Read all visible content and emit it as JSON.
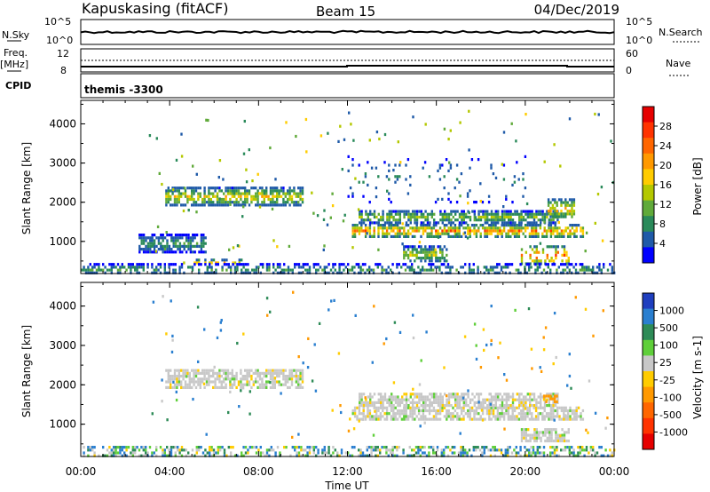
{
  "header": {
    "station": "Kapuskasing (fitACF)",
    "beam": "Beam 15",
    "date": "04/Dec/2019"
  },
  "top_panels": {
    "nsky_label": "N.Sky",
    "nsearch_label": "N.Search",
    "freq_label": "Freq.",
    "freq_unit": "[MHz]",
    "nave_label": "Nave",
    "cpid_label": "CPID",
    "cpid_value": "themis -3300",
    "nsky_ticks": [
      "10^5",
      "10^0"
    ],
    "nsearch_ticks": [
      "10^5",
      "10^0"
    ],
    "freq_ticks": [
      "12",
      "8"
    ],
    "nave_ticks": [
      "60",
      "0"
    ]
  },
  "chart_data": [
    {
      "type": "heatmap",
      "panel": "power",
      "ylabel": "Slant Range [km]",
      "xlabel": "Time UT",
      "x_ticks": [
        "00:00",
        "04:00",
        "08:00",
        "12:00",
        "16:00",
        "20:00",
        "00:00"
      ],
      "x_range_hours": [
        0,
        24
      ],
      "y_ticks": [
        1000,
        2000,
        3000,
        4000
      ],
      "ylim": [
        180,
        4600
      ],
      "colorbar_label": "Power [dB]",
      "colorbar_ticks": [
        "28",
        "24",
        "20",
        "16",
        "12",
        "8",
        "4"
      ],
      "colorbar_colors": [
        "#e60000",
        "#ff3300",
        "#ff6600",
        "#ff9900",
        "#ffcc00",
        "#b4c800",
        "#60aa3a",
        "#2a8a5a",
        "#1f5aa8",
        "#0000ff"
      ],
      "echo_regions": [
        {
          "t": [
            3.8,
            10.0
          ],
          "r": [
            1950,
            2400
          ],
          "peak": 18
        },
        {
          "t": [
            4.6,
            7.2
          ],
          "r": [
            450,
            560
          ],
          "peak": 24
        },
        {
          "t": [
            2.6,
            5.6
          ],
          "r": [
            750,
            1200
          ],
          "peak": 10
        },
        {
          "t": [
            12.2,
            22.6
          ],
          "r": [
            1150,
            1450
          ],
          "peak": 24
        },
        {
          "t": [
            12.5,
            21.5
          ],
          "r": [
            1500,
            1800
          ],
          "peak": 14
        },
        {
          "t": [
            14.5,
            16.5
          ],
          "r": [
            500,
            900
          ],
          "peak": 16
        },
        {
          "t": [
            19.8,
            22.0
          ],
          "r": [
            450,
            900
          ],
          "peak": 28
        },
        {
          "t": [
            21.0,
            22.2
          ],
          "r": [
            1600,
            2100
          ],
          "peak": 20
        },
        {
          "t": [
            0.0,
            24.0
          ],
          "r": [
            180,
            450
          ],
          "peak": 10
        },
        {
          "t": [
            12.0,
            20.0
          ],
          "r": [
            2000,
            3200
          ],
          "peak": 8
        }
      ]
    },
    {
      "type": "heatmap",
      "panel": "velocity",
      "ylabel": "Slant Range [km]",
      "xlabel": "Time UT",
      "x_ticks": [
        "00:00",
        "04:00",
        "08:00",
        "12:00",
        "16:00",
        "20:00",
        "00:00"
      ],
      "x_range_hours": [
        0,
        24
      ],
      "y_ticks": [
        1000,
        2000,
        3000,
        4000
      ],
      "ylim": [
        180,
        4600
      ],
      "colorbar_label": "Velocity [m s-1]",
      "colorbar_ticks": [
        "1000",
        "500",
        "100",
        "25",
        "-25",
        "-100",
        "-500",
        "-1000"
      ],
      "colorbar_colors": [
        "#1f3fbf",
        "#2a7fd0",
        "#2e8b57",
        "#5fcf3a",
        "#c8c8c8",
        "#ffcc00",
        "#ff9900",
        "#ff6600",
        "#ff3300",
        "#e60000"
      ],
      "echo_regions": [
        {
          "t": [
            3.8,
            10.0
          ],
          "r": [
            1950,
            2400
          ],
          "vel": 0
        },
        {
          "t": [
            12.2,
            22.6
          ],
          "r": [
            1150,
            1450
          ],
          "vel": 0
        },
        {
          "t": [
            12.5,
            21.5
          ],
          "r": [
            1500,
            1800
          ],
          "vel": 0
        },
        {
          "t": [
            19.8,
            22.0
          ],
          "r": [
            600,
            900
          ],
          "vel": 0
        },
        {
          "t": [
            20.8,
            21.4
          ],
          "r": [
            1600,
            1750
          ],
          "vel": -150
        },
        {
          "t": [
            0.0,
            24.0
          ],
          "r": [
            180,
            450
          ],
          "vel": 60
        }
      ]
    }
  ]
}
